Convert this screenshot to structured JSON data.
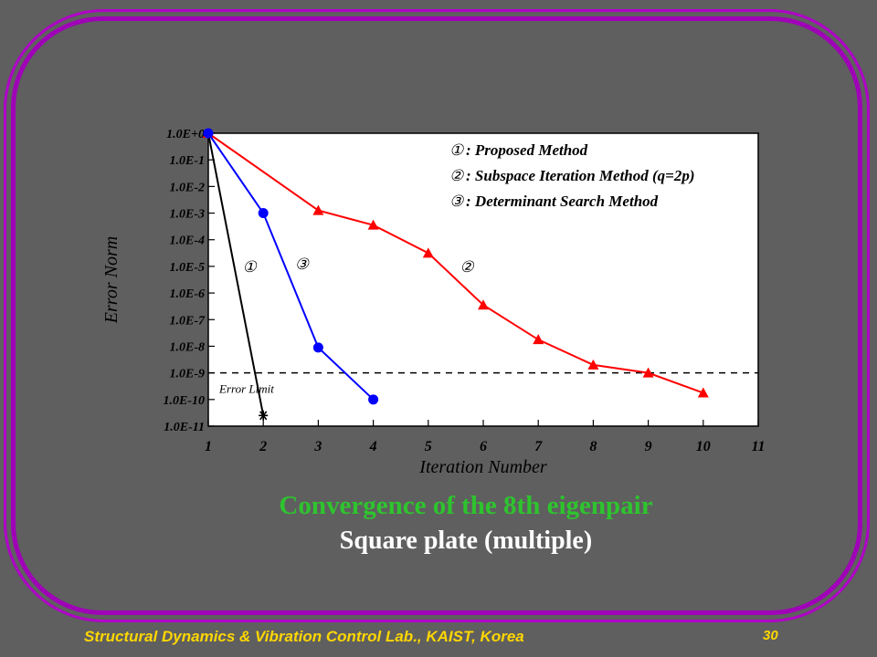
{
  "slide": {
    "caption_title": "Convergence of the 8th eigenpair",
    "caption_subtitle": "Square plate (multiple)",
    "footer_lab": "Structural Dynamics & Vibration Control Lab., KAIST, Korea",
    "page_number": "30"
  },
  "colors": {
    "background": "#5f5f5f",
    "frame": "#a000b8",
    "plot_bg": "#ffffff",
    "proposed": "#000000",
    "subspace": "#ff0000",
    "determinant": "#0000ff",
    "caption_title": "#2ec42e",
    "footer": "#ffd700"
  },
  "chart_data": {
    "type": "line",
    "xlabel": "Iteration Number",
    "ylabel": "Error Norm",
    "y_scale": "log",
    "xlim": [
      1,
      11
    ],
    "ylim_exp": [
      -11,
      0
    ],
    "x_ticks": [
      "1",
      "2",
      "3",
      "4",
      "5",
      "6",
      "7",
      "8",
      "9",
      "10",
      "11"
    ],
    "y_ticks": [
      "1.0E+0",
      "1.0E-1",
      "1.0E-2",
      "1.0E-3",
      "1.0E-4",
      "1.0E-5",
      "1.0E-6",
      "1.0E-7",
      "1.0E-8",
      "1.0E-9",
      "1.0E-10",
      "1.0E-11"
    ],
    "error_limit": {
      "label": "Error Limit",
      "value_exp": -9
    },
    "legend_position": "top-right",
    "legend": [
      {
        "mark": "①",
        "text": ": Proposed Method"
      },
      {
        "mark": "②",
        "text": ": Subspace Iteration Method (q=2p)"
      },
      {
        "mark": "③",
        "text": ": Determinant Search Method"
      }
    ],
    "series": [
      {
        "name": "①",
        "color": "#000000",
        "marker": "asterisk",
        "x": [
          1,
          2
        ],
        "y_exp": [
          0,
          -10.6
        ]
      },
      {
        "name": "②",
        "color": "#ff0000",
        "marker": "triangle",
        "x": [
          1,
          3,
          4,
          5,
          6,
          7,
          8,
          9,
          10
        ],
        "y_exp": [
          0,
          -2.9,
          -3.45,
          -4.5,
          -6.45,
          -7.75,
          -8.7,
          -9.0,
          -9.75
        ]
      },
      {
        "name": "③",
        "color": "#0000ff",
        "marker": "circle",
        "x": [
          1,
          2,
          3,
          4
        ],
        "y_exp": [
          0,
          -3.0,
          -8.05,
          -10.0
        ]
      }
    ],
    "series_labels": [
      {
        "text": "①",
        "x": 1.75,
        "y_exp": -5.0
      },
      {
        "text": "③",
        "x": 2.7,
        "y_exp": -4.9
      },
      {
        "text": "②",
        "x": 5.7,
        "y_exp": -5.0
      }
    ]
  }
}
